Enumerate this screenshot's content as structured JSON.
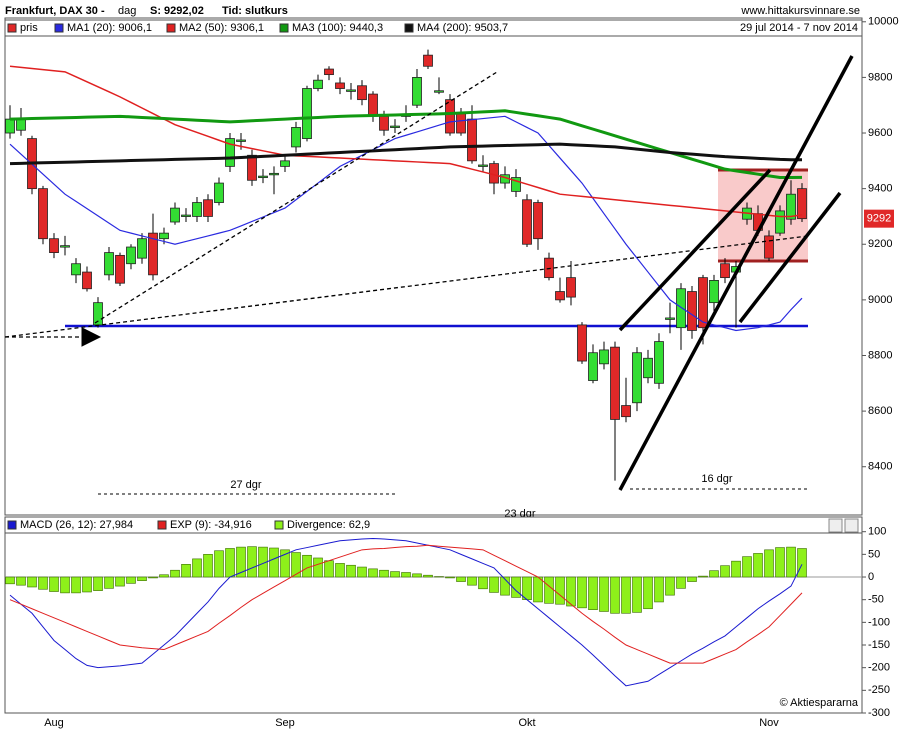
{
  "header": {
    "title": "Frankfurt, DAX 30 -",
    "period": "dag",
    "last": "S: 9292,02",
    "mode": "Tid: slutkurs",
    "site": "www.hittakursvinnare.se"
  },
  "chart_data": [
    {
      "type": "candlestick",
      "date_range": "29 jul 2014 - 7 nov 2014",
      "categories": [
        null,
        null,
        null,
        null,
        "Aug",
        null,
        null,
        null,
        null,
        null,
        null,
        null,
        null,
        null,
        null,
        null,
        null,
        null,
        null,
        null,
        null,
        null,
        null,
        null,
        null,
        "Sep",
        null,
        null,
        null,
        null,
        null,
        null,
        null,
        null,
        null,
        null,
        null,
        null,
        null,
        null,
        null,
        null,
        null,
        null,
        null,
        null,
        null,
        "Okt",
        null,
        null,
        null,
        null,
        null,
        null,
        null,
        null,
        null,
        null,
        null,
        null,
        null,
        null,
        null,
        null,
        null,
        null,
        null,
        null,
        null,
        "Nov",
        null,
        null,
        null
      ],
      "series": [
        {
          "name": "pris",
          "type": "candle",
          "up_color": "#33dd33",
          "down_color": "#e02828",
          "open": [
            9600,
            9610,
            9580,
            9400,
            9220,
            9190,
            9090,
            9100,
            8910,
            9090,
            9160,
            9130,
            9150,
            9240,
            9220,
            9280,
            9300,
            9300,
            9360,
            9350,
            9480,
            9570,
            9520,
            9440,
            9450,
            9480,
            9550,
            9580,
            9760,
            9830,
            9780,
            9750,
            9770,
            9740,
            9660,
            9620,
            9660,
            9700,
            9880,
            9750,
            9720,
            9670,
            9650,
            9480,
            9490,
            9420,
            9390,
            9360,
            9350,
            9150,
            9030,
            9080,
            8910,
            8710,
            8770,
            8830,
            8620,
            8630,
            8720,
            8700,
            8930,
            8900,
            9030,
            9080,
            8990,
            9130,
            9100,
            9290,
            9310,
            9230,
            9240,
            9290,
            9400
          ],
          "high": [
            9700,
            9690,
            9590,
            9410,
            9240,
            9230,
            9150,
            9120,
            9010,
            9190,
            9170,
            9200,
            9240,
            9310,
            9260,
            9350,
            9330,
            9370,
            9380,
            9440,
            9600,
            9600,
            9540,
            9470,
            9480,
            9520,
            9640,
            9770,
            9810,
            9840,
            9800,
            9780,
            9790,
            9750,
            9680,
            9650,
            9700,
            9830,
            9900,
            9800,
            9740,
            9690,
            9700,
            9520,
            9500,
            9480,
            9470,
            9380,
            9360,
            9170,
            9080,
            9140,
            8920,
            8840,
            8850,
            8850,
            8720,
            8830,
            8820,
            8880,
            8990,
            9060,
            9050,
            9090,
            9090,
            9150,
            9140,
            9350,
            9340,
            9250,
            9340,
            9430,
            9420
          ],
          "low": [
            9580,
            9590,
            9380,
            9200,
            9150,
            9160,
            9060,
            9030,
            8900,
            9070,
            9050,
            9110,
            9130,
            9070,
            9200,
            9270,
            9280,
            9280,
            9280,
            9340,
            9460,
            9540,
            9410,
            9420,
            9380,
            9460,
            9530,
            9570,
            9750,
            9790,
            9740,
            9720,
            9700,
            9640,
            9590,
            9600,
            9640,
            9690,
            9830,
            9740,
            9590,
            9590,
            9490,
            9460,
            9380,
            9400,
            9370,
            9190,
            9180,
            9070,
            8990,
            8980,
            8770,
            8700,
            8750,
            8350,
            8560,
            8600,
            8700,
            8680,
            8880,
            8820,
            8860,
            8840,
            8960,
            9060,
            8900,
            9270,
            9230,
            9140,
            9230,
            9270,
            9280
          ],
          "close": [
            9650,
            9650,
            9400,
            9220,
            9170,
            9195,
            9130,
            9040,
            8990,
            9170,
            9060,
            9190,
            9220,
            9090,
            9240,
            9330,
            9305,
            9350,
            9300,
            9420,
            9580,
            9575,
            9430,
            9445,
            9455,
            9500,
            9620,
            9760,
            9790,
            9810,
            9760,
            9755,
            9720,
            9660,
            9610,
            9625,
            9665,
            9800,
            9840,
            9752,
            9600,
            9600,
            9500,
            9485,
            9420,
            9450,
            9440,
            9200,
            9220,
            9080,
            9000,
            9010,
            8780,
            8810,
            8820,
            8570,
            8580,
            8810,
            8790,
            8850,
            8935,
            9040,
            8890,
            8900,
            9070,
            9080,
            9120,
            9330,
            9250,
            9150,
            9320,
            9380,
            9292.02
          ]
        },
        {
          "name": "MA1 (20): 9006,1",
          "type": "line",
          "color": "#2a2ae0",
          "values": [
            9560,
            9524,
            9488,
            9452,
            9416,
            9380,
            9354,
            9328,
            9302,
            9276,
            9250,
            9240,
            9230,
            9220,
            9210,
            9200,
            9210,
            9220,
            9230,
            9240,
            9250,
            9266,
            9282,
            9298,
            9314,
            9330,
            9360,
            9390,
            9420,
            9450,
            9480,
            9500,
            9520,
            9540,
            9560,
            9580,
            9592,
            9604,
            9616,
            9628,
            9640,
            9644,
            9648,
            9652,
            9656,
            9660,
            9640,
            9620,
            9600,
            9555,
            9510,
            9465,
            9420,
            9365,
            9310,
            9255,
            9200,
            9150,
            9100,
            9050,
            9000,
            8973,
            8947,
            8920,
            8910,
            8900,
            8890,
            8895,
            8900,
            8910,
            8920,
            8965,
            9006.1
          ]
        },
        {
          "name": "MA2 (50): 9306,1",
          "type": "line",
          "color": "#e02020",
          "values": [
            9840,
            9836,
            9832,
            9828,
            9824,
            9820,
            9802,
            9784,
            9766,
            9748,
            9730,
            9710,
            9690,
            9670,
            9650,
            9630,
            9616,
            9602,
            9588,
            9574,
            9560,
            9552,
            9544,
            9536,
            9528,
            9520,
            9518,
            9516,
            9514,
            9512,
            9510,
            9508,
            9506,
            9504,
            9502,
            9500,
            9498,
            9496,
            9494,
            9492,
            9490,
            9480,
            9470,
            9460,
            9450,
            9440,
            9428,
            9416,
            9404,
            9392,
            9380,
            9376,
            9372,
            9368,
            9364,
            9360,
            9356,
            9352,
            9348,
            9344,
            9340,
            9336,
            9332,
            9328,
            9324,
            9320,
            9316,
            9312,
            9308,
            9304,
            9300,
            9300,
            9306.1
          ]
        },
        {
          "name": "MA3 (100): 9440,3",
          "type": "line",
          "color": "#119911",
          "values": [
            9650,
            9651,
            9652,
            9653,
            9654,
            9655,
            9656,
            9657,
            9658,
            9659,
            9660,
            9658,
            9656,
            9654,
            9652,
            9650,
            9648,
            9646,
            9644,
            9642,
            9640,
            9642,
            9644,
            9646,
            9648,
            9650,
            9652,
            9654,
            9656,
            9658,
            9660,
            9661,
            9662,
            9663,
            9664,
            9665,
            9666,
            9667,
            9668,
            9669,
            9670,
            9672,
            9674,
            9676,
            9678,
            9680,
            9674,
            9668,
            9662,
            9656,
            9650,
            9638,
            9626,
            9614,
            9602,
            9590,
            9578,
            9566,
            9554,
            9542,
            9530,
            9518,
            9506,
            9494,
            9482,
            9470,
            9464,
            9458,
            9452,
            9446,
            9440,
            9440,
            9440.3
          ]
        },
        {
          "name": "MA4 (200): 9503,7",
          "type": "line",
          "color": "#111111",
          "values": [
            9490,
            9491,
            9492,
            9493,
            9494,
            9495,
            9496,
            9497,
            9498,
            9499,
            9500,
            9501,
            9502,
            9503,
            9504,
            9505,
            9506,
            9507,
            9508,
            9509,
            9510,
            9512,
            9514,
            9516,
            9518,
            9520,
            9522,
            9524,
            9526,
            9528,
            9530,
            9532,
            9534,
            9536,
            9538,
            9540,
            9542,
            9544,
            9546,
            9548,
            9550,
            9551,
            9552,
            9553,
            9554,
            9555,
            9556,
            9557,
            9558,
            9559,
            9560,
            9558,
            9556,
            9554,
            9552,
            9550,
            9546,
            9542,
            9538,
            9534,
            9530,
            9527,
            9524,
            9521,
            9518,
            9515,
            9513,
            9511,
            9509,
            9507,
            9505,
            9504,
            9503.7
          ]
        }
      ],
      "ylim": [
        8230,
        10010
      ],
      "yticks": [
        10000,
        9800,
        9600,
        9400,
        9200,
        9000,
        8800,
        8600,
        8400
      ],
      "last_label": "9292",
      "annotations": [
        "27 dgr",
        "16 dgr",
        "23 dgr"
      ]
    },
    {
      "type": "macd",
      "series": [
        {
          "name": "MACD (26, 12): 27,984",
          "type": "line",
          "color": "#1a1ad0",
          "values": [
            -40,
            -60,
            -80,
            -110,
            -140,
            -160,
            -180,
            -195,
            -200,
            -198,
            -196,
            -193,
            -190,
            -170,
            -150,
            -130,
            -105,
            -80,
            -55,
            -25,
            0,
            10,
            20,
            30,
            40,
            50,
            60,
            65,
            70,
            75,
            80,
            82,
            84,
            85,
            84,
            82,
            80,
            75,
            70,
            65,
            60,
            50,
            40,
            30,
            20,
            -5,
            -30,
            -50,
            -70,
            -90,
            -110,
            -130,
            -150,
            -172,
            -195,
            -218,
            -240,
            -235,
            -230,
            -215,
            -200,
            -185,
            -170,
            -157,
            -143,
            -130,
            -110,
            -90,
            -70,
            -53,
            -37,
            -20,
            27.984
          ]
        },
        {
          "name": "EXP (9): -34,916",
          "type": "line",
          "color": "#e02020",
          "values": [
            -50,
            -60,
            -70,
            -80,
            -90,
            -100,
            -110,
            -120,
            -130,
            -140,
            -150,
            -153,
            -156,
            -158,
            -160,
            -150,
            -140,
            -130,
            -120,
            -102,
            -85,
            -67,
            -50,
            -36,
            -22,
            -8,
            6,
            20,
            28,
            36,
            44,
            52,
            60,
            62,
            63,
            65,
            67,
            68,
            70,
            68,
            66,
            64,
            62,
            60,
            48,
            36,
            24,
            12,
            0,
            -20,
            -40,
            -60,
            -80,
            -98,
            -115,
            -133,
            -150,
            -160,
            -170,
            -180,
            -190,
            -190,
            -190,
            -190,
            -180,
            -170,
            -160,
            -143,
            -127,
            -110,
            -85,
            -60,
            -34.916
          ]
        },
        {
          "name": "Divergence: 62,9",
          "type": "bar",
          "color": "#8ef01a",
          "values": [
            -15,
            -18,
            -22,
            -27,
            -32,
            -35,
            -35,
            -33,
            -30,
            -25,
            -20,
            -14,
            -8,
            -2,
            5,
            15,
            28,
            40,
            50,
            58,
            63,
            66,
            67,
            66,
            64,
            60,
            54,
            48,
            42,
            36,
            30,
            26,
            22,
            18,
            15,
            12,
            10,
            7,
            4,
            1,
            -2,
            -10,
            -18,
            -26,
            -34,
            -40,
            -45,
            -50,
            -55,
            -58,
            -60,
            -64,
            -68,
            -72,
            -76,
            -80,
            -80,
            -78,
            -70,
            -55,
            -40,
            -25,
            -10,
            2,
            14,
            25,
            35,
            45,
            52,
            60,
            65,
            66,
            62.9
          ]
        }
      ],
      "ylim": [
        -300,
        128
      ],
      "yticks": [
        100,
        50,
        0,
        -50,
        -100,
        -150,
        -200,
        -250,
        -300
      ],
      "credit": "© Aktiespararna"
    }
  ]
}
